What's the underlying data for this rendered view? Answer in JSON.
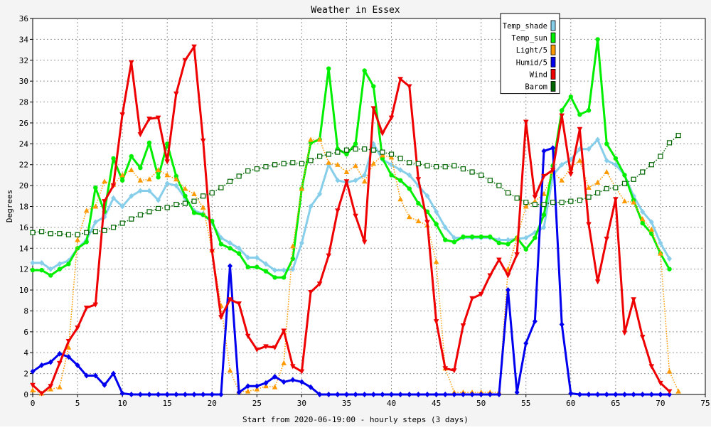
{
  "chart_data": {
    "type": "line",
    "title": "Weather in Essex",
    "xlabel": "Start from 2020-06-19:00 - hourly steps (3 days)",
    "ylabel": "Degrees",
    "xlim": [
      0,
      75
    ],
    "ylim": [
      0,
      36
    ],
    "xticks": [
      0,
      5,
      10,
      15,
      20,
      25,
      30,
      35,
      40,
      45,
      50,
      55,
      60,
      65,
      70,
      75
    ],
    "yticks": [
      0,
      2,
      4,
      6,
      8,
      10,
      12,
      14,
      16,
      18,
      20,
      22,
      24,
      26,
      28,
      30,
      32,
      34,
      36
    ],
    "grid": true,
    "legend_position": "top-right",
    "series": [
      {
        "name": "Temp_shade",
        "color": "#87ceeb",
        "marker": "diamond",
        "style": "solid",
        "values": [
          12.6,
          12.6,
          12.0,
          12.5,
          12.8,
          14.0,
          14.8,
          16.5,
          17.0,
          18.8,
          18.0,
          19.0,
          19.5,
          19.5,
          18.6,
          20.2,
          20.0,
          18.8,
          17.6,
          17.3,
          16.4,
          15.0,
          14.5,
          14.0,
          13.1,
          13.1,
          12.5,
          11.9,
          11.9,
          12.0,
          14.5,
          18.0,
          19.2,
          22.0,
          20.5,
          20.3,
          20.5,
          21.0,
          24.0,
          22.5,
          22.0,
          21.5,
          21.0,
          20.0,
          19.0,
          17.5,
          16.0,
          15.0,
          15.0,
          15.0,
          15.0,
          15.0,
          14.8,
          14.8,
          14.9,
          15.0,
          15.5,
          16.0,
          21.0,
          22.0,
          22.5,
          23.5,
          23.5,
          24.4,
          22.4,
          22.0,
          21.0,
          19.0,
          17.5,
          16.5,
          14.5,
          13.0
        ]
      },
      {
        "name": "Temp_sun",
        "color": "#00ee00",
        "marker": "circle",
        "style": "solid",
        "values": [
          11.9,
          11.9,
          11.4,
          12.0,
          12.5,
          14.0,
          14.6,
          19.8,
          17.5,
          22.6,
          20.5,
          22.8,
          21.7,
          24.1,
          20.8,
          24.0,
          20.9,
          19.0,
          17.4,
          17.2,
          16.6,
          14.4,
          14.0,
          13.5,
          12.2,
          12.2,
          11.8,
          11.2,
          11.2,
          13.0,
          19.7,
          24.1,
          24.4,
          31.2,
          23.5,
          23.0,
          24.0,
          31.0,
          29.5,
          22.6,
          21.0,
          20.5,
          19.7,
          18.3,
          17.5,
          16.3,
          14.8,
          14.6,
          15.1,
          15.1,
          15.1,
          15.1,
          14.5,
          14.4,
          15.0,
          13.9,
          15.0,
          17.2,
          21.9,
          27.2,
          28.5,
          26.8,
          27.2,
          34.0,
          24.0,
          22.6,
          21.0,
          18.6,
          16.4,
          15.4,
          13.5,
          12.0
        ]
      },
      {
        "name": "Light/5",
        "color": "#ff9900",
        "marker": "triangle",
        "style": "dotted",
        "values": [
          0.4,
          0.1,
          0.5,
          0.7,
          4.5,
          14.8,
          17.6,
          18.0,
          20.4,
          20.1,
          21.0,
          21.5,
          20.5,
          20.6,
          21.5,
          21.0,
          20.6,
          19.7,
          19.2,
          17.9,
          13.8,
          8.5,
          2.3,
          0.3,
          0.3,
          0.5,
          0.8,
          0.7,
          3.0,
          14.2,
          19.7,
          24.4,
          24.4,
          22.2,
          22.0,
          21.3,
          21.9,
          20.4,
          22.1,
          22.9,
          22.7,
          18.7,
          17.0,
          16.6,
          16.2,
          12.7,
          2.5,
          0.2,
          0.2,
          0.2,
          0.2,
          0.2,
          0.2,
          12.0,
          15.0,
          18.0,
          18.5,
          19.2,
          21.3,
          20.5,
          21.7,
          22.4,
          19.8,
          20.3,
          21.3,
          19.8,
          18.5,
          18.4,
          16.8,
          15.8,
          13.5,
          2.2,
          0.3
        ]
      },
      {
        "name": "Humid/5",
        "color": "#0000ee",
        "marker": "diamond",
        "style": "solid",
        "values": [
          2.2,
          2.8,
          3.1,
          3.9,
          3.6,
          2.8,
          1.8,
          1.8,
          0.9,
          2.0,
          0.1,
          0.0,
          0.0,
          0.0,
          0.0,
          0.0,
          0.0,
          0.0,
          0.0,
          0.0,
          0.0,
          0.0,
          12.3,
          0.2,
          0.8,
          0.8,
          1.1,
          1.7,
          1.2,
          1.4,
          1.2,
          0.7,
          0.0,
          0.0,
          0.0,
          0.0,
          0.0,
          0.0,
          0.0,
          0.0,
          0.0,
          0.0,
          0.0,
          0.0,
          0.0,
          0.0,
          0.0,
          0.0,
          0.0,
          0.0,
          0.0,
          0.0,
          0.0,
          10.0,
          0.2,
          4.9,
          7.0,
          23.3,
          23.6,
          6.7,
          0.1,
          0.0,
          0.0,
          0.0,
          0.0,
          0.0,
          0.0,
          0.0,
          0.0,
          0.0,
          0.0,
          0.0
        ]
      },
      {
        "name": "Wind",
        "color": "#ee0000",
        "marker": "triangle-down",
        "style": "solid",
        "values": [
          0.9,
          0.1,
          0.8,
          3.0,
          5.1,
          6.4,
          8.3,
          8.6,
          18.5,
          20.0,
          26.8,
          31.8,
          24.9,
          26.4,
          26.5,
          22.3,
          28.8,
          32.0,
          33.3,
          24.3,
          13.7,
          7.4,
          9.1,
          8.7,
          5.6,
          4.3,
          4.6,
          4.5,
          6.1,
          2.7,
          2.2,
          9.8,
          10.6,
          13.3,
          17.6,
          20.4,
          17.1,
          14.6,
          27.4,
          25.0,
          26.5,
          30.2,
          29.5,
          20.6,
          16.5,
          7.0,
          2.5,
          2.3,
          6.6,
          9.2,
          9.6,
          11.4,
          12.9,
          11.4,
          13.4,
          26.1,
          18.9,
          20.9,
          21.5,
          26.7,
          21.1,
          25.4,
          16.3,
          10.8,
          14.9,
          18.7,
          5.9,
          9.1,
          5.5,
          2.7,
          1.1,
          0.3
        ]
      },
      {
        "name": "Barom",
        "color": "#006600",
        "marker": "square-open",
        "style": "dotted",
        "values": [
          15.5,
          15.6,
          15.4,
          15.4,
          15.3,
          15.3,
          15.5,
          15.6,
          15.7,
          16.0,
          16.4,
          16.8,
          17.2,
          17.5,
          17.8,
          17.9,
          18.2,
          18.3,
          18.5,
          19.0,
          19.3,
          19.8,
          20.4,
          20.9,
          21.4,
          21.6,
          21.8,
          22.0,
          22.1,
          22.2,
          22.1,
          22.4,
          22.8,
          23.0,
          23.2,
          23.4,
          23.5,
          23.5,
          23.4,
          23.2,
          23.0,
          22.6,
          22.2,
          22.1,
          21.9,
          21.8,
          21.8,
          21.9,
          21.6,
          21.3,
          21.0,
          20.5,
          20.0,
          19.3,
          18.8,
          18.4,
          18.2,
          18.2,
          18.4,
          18.4,
          18.5,
          18.6,
          18.9,
          19.3,
          19.7,
          19.8,
          20.2,
          20.6,
          21.3,
          22.0,
          22.8,
          24.1,
          24.8
        ]
      }
    ]
  }
}
